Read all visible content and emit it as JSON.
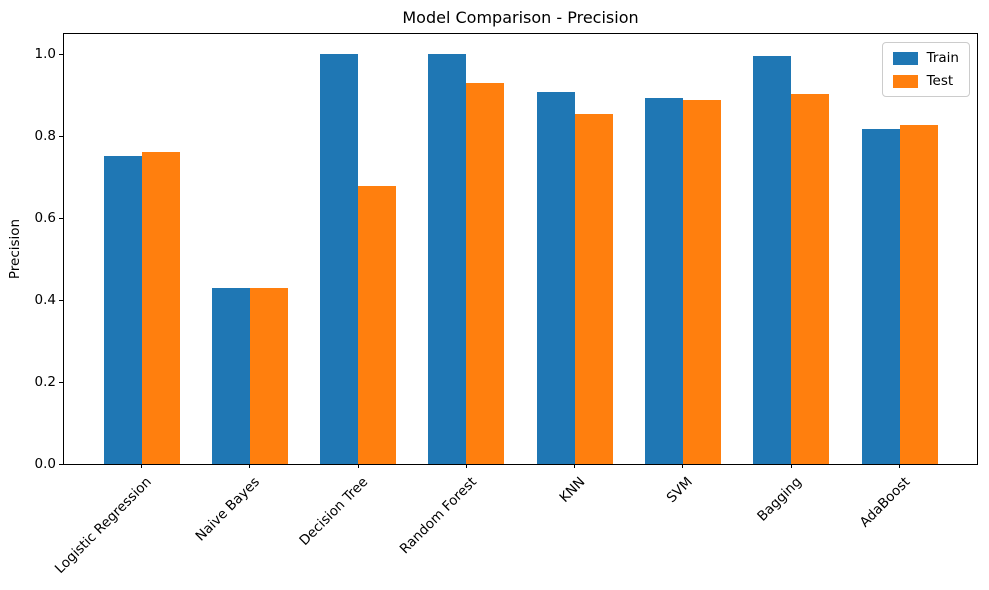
{
  "chart_data": {
    "type": "bar",
    "title": "Model Comparison - Precision",
    "xlabel": "",
    "ylabel": "Precision",
    "categories": [
      "Logistic Regression",
      "Naive Bayes",
      "Decision Tree",
      "Random Forest",
      "KNN",
      "SVM",
      "Bagging",
      "AdaBoost"
    ],
    "series": [
      {
        "name": "Train",
        "color": "#1f77b4",
        "values": [
          0.753,
          0.429,
          1.0,
          1.0,
          0.909,
          0.893,
          0.996,
          0.818
        ]
      },
      {
        "name": "Test",
        "color": "#ff7f0e",
        "values": [
          0.761,
          0.429,
          0.678,
          0.931,
          0.855,
          0.889,
          0.903,
          0.829
        ]
      }
    ],
    "ylim": [
      0,
      1.05
    ],
    "yticks": [
      0.0,
      0.2,
      0.4,
      0.6,
      0.8,
      1.0
    ],
    "ytick_labels": [
      "0.0",
      "0.2",
      "0.4",
      "0.6",
      "0.8",
      "1.0"
    ],
    "grid": false,
    "legend_position": "upper right",
    "bar_width_fraction": 0.35,
    "x_label_rotation_deg": 45,
    "axis_color": "#000000",
    "background_color": "#ffffff"
  }
}
